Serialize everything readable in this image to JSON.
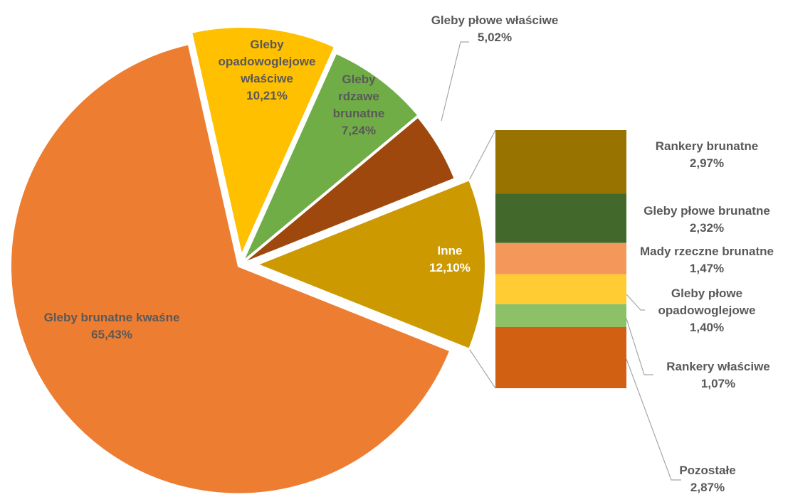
{
  "chart_data": {
    "type": "pie-of-bar",
    "main": [
      {
        "name": "Gleby brunatne kwaśne",
        "value": 65.43,
        "label_lines": [
          "Gleby brunatne kwaśne"
        ],
        "value_label": "65,43%",
        "color": "#ED7D31",
        "text_color": "#595959"
      },
      {
        "name": "Gleby opadowoglejowe właściwe",
        "value": 10.21,
        "label_lines": [
          "Gleby",
          "opadowoglejowe",
          "właściwe"
        ],
        "value_label": "10,21%",
        "color": "#FFC000",
        "text_color": "#595959"
      },
      {
        "name": "Gleby rdzawe brunatne",
        "value": 7.24,
        "label_lines": [
          "Gleby",
          "rdzawe",
          "brunatne"
        ],
        "value_label": "7,24%",
        "color": "#70AD47",
        "text_color": "#595959"
      },
      {
        "name": "Gleby płowe właściwe",
        "value": 5.02,
        "label_lines": [
          "Gleby płowe właściwe"
        ],
        "value_label": "5,02%",
        "color": "#9E480E",
        "text_color": "#595959"
      },
      {
        "name": "Inne",
        "value": 12.1,
        "label_lines": [
          "Inne"
        ],
        "value_label": "12,10%",
        "color": "#CC9900",
        "text_color": "#ffffff"
      }
    ],
    "breakdown_of": "Inne",
    "breakdown": [
      {
        "name": "Rankery brunatne",
        "value": 2.97,
        "label_lines": [
          "Rankery brunatne"
        ],
        "value_label": "2,97%",
        "color": "#997300"
      },
      {
        "name": "Gleby płowe brunatne",
        "value": 2.32,
        "label_lines": [
          "Gleby płowe brunatne"
        ],
        "value_label": "2,32%",
        "color": "#43682B"
      },
      {
        "name": "Mady rzeczne brunatne",
        "value": 1.47,
        "label_lines": [
          "Mady rzeczne brunatne"
        ],
        "value_label": "1,47%",
        "color": "#F4975A"
      },
      {
        "name": "Gleby płowe opadowoglejowe",
        "value": 1.4,
        "label_lines": [
          "Gleby płowe",
          "opadowoglejowe"
        ],
        "value_label": "1,40%",
        "color": "#FFCD33"
      },
      {
        "name": "Rankery właściwe",
        "value": 1.07,
        "label_lines": [
          "Rankery właściwe"
        ],
        "value_label": "1,07%",
        "color": "#8CC168"
      },
      {
        "name": "Pozostałe",
        "value": 2.87,
        "label_lines": [
          "Pozostałe"
        ],
        "value_label": "2,87%",
        "color": "#D26012"
      }
    ],
    "legend": "none",
    "title": ""
  }
}
